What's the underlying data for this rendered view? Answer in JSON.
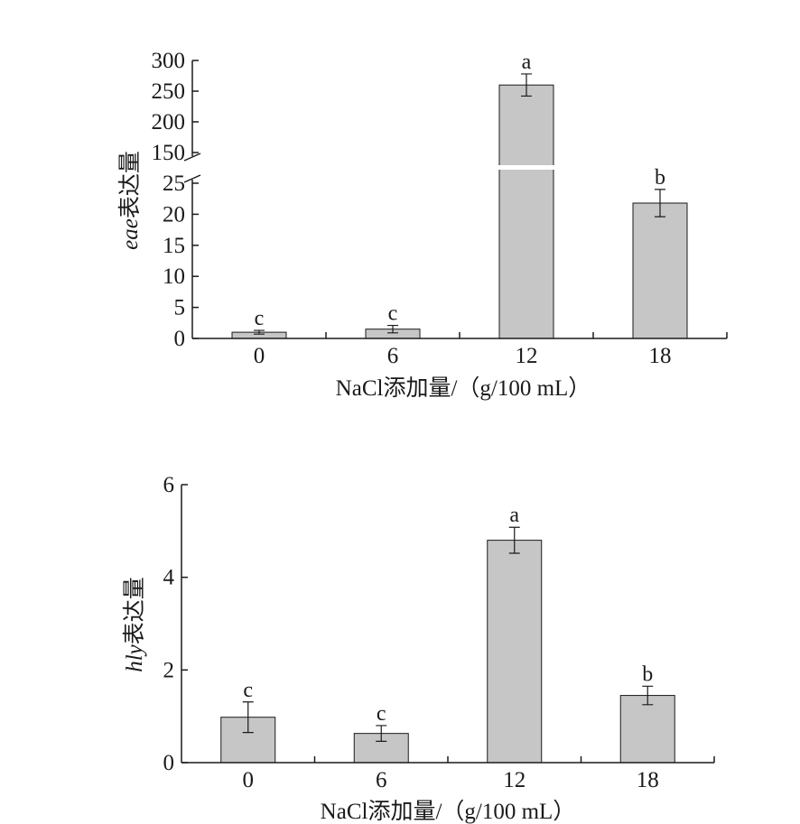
{
  "chart_data": [
    {
      "type": "bar",
      "categories": [
        "0",
        "6",
        "12",
        "18"
      ],
      "values": [
        1,
        1.5,
        260,
        21.8
      ],
      "errors": [
        0.3,
        0.6,
        18,
        2.2
      ],
      "significance": [
        "c",
        "c",
        "a",
        "b"
      ],
      "xlabel": "NaCl添加量/（g/100 mL）",
      "ylabel_gene": "eae",
      "ylabel_suffix": "表达量",
      "axis_break": true,
      "y_ticks_lower": [
        "0",
        "5",
        "10",
        "15",
        "20",
        "25"
      ],
      "y_ticks_upper": [
        "150",
        "200",
        "250",
        "300"
      ],
      "ylim_lower": [
        0,
        25
      ],
      "ylim_upper": [
        150,
        300
      ],
      "grid": false,
      "bar_color": "#c6c6c6"
    },
    {
      "type": "bar",
      "categories": [
        "0",
        "6",
        "12",
        "18"
      ],
      "values": [
        0.98,
        0.63,
        4.8,
        1.45
      ],
      "errors": [
        0.33,
        0.17,
        0.28,
        0.2
      ],
      "significance": [
        "c",
        "c",
        "a",
        "b"
      ],
      "xlabel": "NaCl添加量/（g/100 mL）",
      "ylabel_gene": "hly",
      "ylabel_suffix": "表达量",
      "y_ticks": [
        "0",
        "2",
        "4",
        "6"
      ],
      "ylim": [
        0,
        6
      ],
      "grid": false,
      "bar_color": "#c6c6c6"
    }
  ]
}
